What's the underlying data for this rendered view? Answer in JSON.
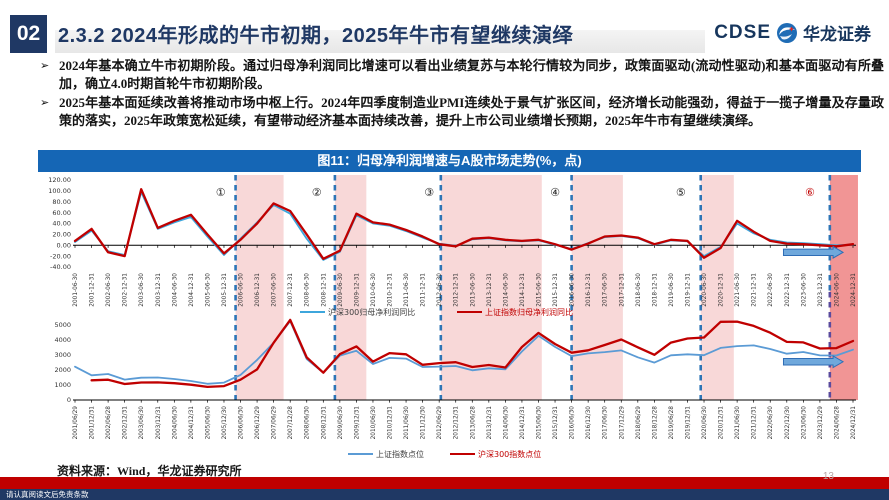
{
  "header": {
    "section_number": "02",
    "title": "2.3.2 2024年形成的牛市初期，2025年牛市有望继续演绎",
    "logo_acronym": "CDSE",
    "logo_name": "华龙证券"
  },
  "ui": {
    "bullet_char": "➢"
  },
  "bullets": [
    {
      "text": "2024年基本确立牛市初期阶段。通过归母净利润同比增速可以看出业绩复苏与本轮行情较为同步，政策面驱动(流动性驱动)和基本面驱动有所叠加，确立4.0时期首轮牛市初期阶段。"
    },
    {
      "text": "2025年基本面延续改善将推动市场中枢上行。2024年四季度制造业PMI连续处于景气扩张区间，经济增长动能强劲，得益于一揽子增量及存量政策的落实，2025年政策宽松延续，有望带动经济基本面持续改善，提升上市公司业绩增长预期，2025年牛市有望继续演绎。"
    }
  ],
  "figure": {
    "title": "图11：归母净利润增速与A股市场走势(%，点)",
    "phase_lines": [
      9.7,
      15.7,
      22.1,
      30.0,
      37.8,
      45.6
    ],
    "bands": [
      {
        "from": 9.7,
        "to": 12.6,
        "tone": "light"
      },
      {
        "from": 15.7,
        "to": 17.6,
        "tone": "light"
      },
      {
        "from": 22.1,
        "to": 28.2,
        "tone": "light"
      },
      {
        "from": 30.0,
        "to": 33.1,
        "tone": "light"
      },
      {
        "from": 37.8,
        "to": 39.8,
        "tone": "light"
      },
      {
        "from": 45.6,
        "to": 47.3,
        "tone": "dark"
      }
    ],
    "circles": [
      {
        "label": "①",
        "idx": 8.8,
        "color": "#1a1a1a"
      },
      {
        "label": "②",
        "idx": 14.6,
        "color": "#1a1a1a"
      },
      {
        "label": "③",
        "idx": 21.4,
        "color": "#1a1a1a"
      },
      {
        "label": "④",
        "idx": 29.0,
        "color": "#1a1a1a"
      },
      {
        "label": "⑤",
        "idx": 36.6,
        "color": "#1a1a1a"
      },
      {
        "label": "⑥",
        "idx": 44.4,
        "color": "#c00000"
      }
    ],
    "arrows": [
      {
        "chart": 0,
        "idx_from": 42.8,
        "idx_to": 46.4,
        "value": -13
      },
      {
        "chart": 1,
        "idx_from": 42.8,
        "idx_to": 46.4,
        "value": 2550
      }
    ]
  },
  "chart_data": [
    {
      "type": "line",
      "title": "归母净利润同比增速(%)",
      "x": [
        "2001-06-30",
        "2001-12-31",
        "2002-06-30",
        "2002-12-31",
        "2003-06-30",
        "2003-12-31",
        "2004-06-30",
        "2004-12-31",
        "2005-06-30",
        "2005-12-31",
        "2006-06-30",
        "2006-12-31",
        "2007-06-30",
        "2007-12-31",
        "2008-06-30",
        "2008-12-31",
        "2009-06-30",
        "2009-12-31",
        "2010-06-30",
        "2010-12-31",
        "2011-06-30",
        "2011-12-31",
        "2012-06-30",
        "2012-12-31",
        "2013-06-30",
        "2013-12-31",
        "2014-06-30",
        "2014-12-31",
        "2015-06-30",
        "2015-12-31",
        "2016-06-30",
        "2016-12-31",
        "2017-06-30",
        "2017-12-31",
        "2018-06-30",
        "2018-12-31",
        "2019-06-30",
        "2019-12-31",
        "2020-06-30",
        "2020-12-31",
        "2021-06-30",
        "2021-12-31",
        "2022-06-30",
        "2022-12-31",
        "2023-06-30",
        "2023-12-31",
        "2024-06-30",
        "2024-12-31"
      ],
      "series": [
        {
          "name": "沪深300归母净利润同比",
          "color": "#3da6dc",
          "width": 1.8,
          "values": [
            6,
            27,
            -11,
            -18,
            98,
            30,
            42,
            52,
            16,
            -18,
            12,
            42,
            74,
            58,
            12,
            -27,
            -12,
            55,
            40,
            36,
            26,
            14,
            3,
            -1,
            11,
            13,
            9,
            7,
            9,
            1,
            -7,
            4,
            15,
            17,
            13,
            1,
            9,
            7,
            -20,
            -3,
            40,
            22,
            10,
            5,
            4,
            2,
            0,
            1
          ]
        },
        {
          "name": "上证指数归母净利润同比",
          "color": "#c00000",
          "width": 2.3,
          "values": [
            8,
            30,
            -13,
            -20,
            103,
            32,
            45,
            56,
            20,
            -15,
            10,
            40,
            77,
            63,
            20,
            -25,
            -10,
            58,
            42,
            38,
            28,
            16,
            2,
            -2,
            12,
            14,
            10,
            8,
            10,
            2,
            -8,
            3,
            16,
            18,
            14,
            2,
            10,
            8,
            -23,
            -5,
            45,
            25,
            8,
            3,
            2,
            0,
            -2,
            2
          ]
        }
      ],
      "ylim": [
        -40,
        120
      ],
      "yticks": [
        120,
        100,
        80,
        60,
        40,
        20,
        0,
        -20,
        -40
      ],
      "ytick_labels": [
        "120.00",
        "100.00",
        "80.00",
        "60.00",
        "40.00",
        "20.00",
        "0.00",
        "-20.00",
        "-40.00"
      ],
      "grid": false,
      "legend_position": "bottom"
    },
    {
      "type": "line",
      "title": "A股市场走势(点)",
      "x": [
        "2001/06/29",
        "2001/12/31",
        "2002/06/28",
        "2002/12/31",
        "2003/06/30",
        "2003/12/31",
        "2004/06/30",
        "2004/12/31",
        "2005/06/30",
        "2005/12/30",
        "2006/06/30",
        "2006/12/29",
        "2007/06/29",
        "2007/12/28",
        "2008/06/30",
        "2008/12/31",
        "2009/06/30",
        "2009/12/31",
        "2010/06/30",
        "2010/12/31",
        "2011/06/30",
        "2011/12/30",
        "2012/06/29",
        "2012/12/31",
        "2013/06/28",
        "2013/12/31",
        "2014/06/30",
        "2014/12/31",
        "2015/06/30",
        "2015/12/31",
        "2016/06/30",
        "2016/12/30",
        "2017/06/30",
        "2017/12/29",
        "2018/06/29",
        "2018/12/28",
        "2019/06/28",
        "2019/12/31",
        "2020/06/30",
        "2020/12/31",
        "2021/06/30",
        "2021/12/31",
        "2022/06/30",
        "2022/12/30",
        "2023/06/30",
        "2023/12/29",
        "2024/06/28",
        "2024/12/31"
      ],
      "series": [
        {
          "name": "上证指数点位",
          "color": "#5b9bd5",
          "width": 1.8,
          "values": [
            2218,
            1646,
            1733,
            1358,
            1487,
            1497,
            1399,
            1267,
            1081,
            1161,
            1672,
            2675,
            3821,
            5262,
            2736,
            1821,
            2959,
            3277,
            2398,
            2808,
            2762,
            2199,
            2225,
            2269,
            1979,
            2116,
            2048,
            3235,
            4277,
            3539,
            2930,
            3104,
            3192,
            3307,
            2847,
            2494,
            2979,
            3050,
            2985,
            3473,
            3591,
            3640,
            3399,
            3089,
            3202,
            2975,
            2967,
            3352
          ]
        },
        {
          "name": "沪深300指数点位",
          "color": "#c00000",
          "width": 2.3,
          "values": [
            null,
            1316,
            1351,
            1064,
            1164,
            1173,
            1118,
            1023,
            871,
            924,
            1353,
            2041,
            3815,
            5338,
            2839,
            1818,
            3060,
            3576,
            2563,
            3128,
            3044,
            2346,
            2461,
            2523,
            2201,
            2331,
            2166,
            3534,
            4473,
            3731,
            3154,
            3310,
            3666,
            4031,
            3511,
            3011,
            3826,
            4097,
            4164,
            5211,
            5224,
            4940,
            4485,
            3872,
            3842,
            3432,
            3462,
            3935
          ]
        }
      ],
      "ylim": [
        0,
        5500
      ],
      "yticks": [
        5000,
        4000,
        3000,
        2000,
        1000,
        0
      ],
      "ytick_labels": [
        "5000",
        "4000",
        "3000",
        "2000",
        "1000",
        "0"
      ],
      "grid": false,
      "legend_position": "bottom"
    }
  ],
  "colors": {
    "navy": "#1f3864",
    "figure_bar_blue": "#1566b5",
    "band_light": "#f3b8b8",
    "band_dark": "#ee8282",
    "dash_blue": "#2e75b6",
    "dash_purple": "#5a4b9e",
    "arrow_fill": "#6fa8dc",
    "arrow_stroke": "#2f6db5",
    "footer_red": "#c00000"
  },
  "source": "资料来源：Wind，华龙证券研究所",
  "page_number": "13",
  "footer": {
    "disclaimer": "请认真阅读文后免责条款"
  }
}
